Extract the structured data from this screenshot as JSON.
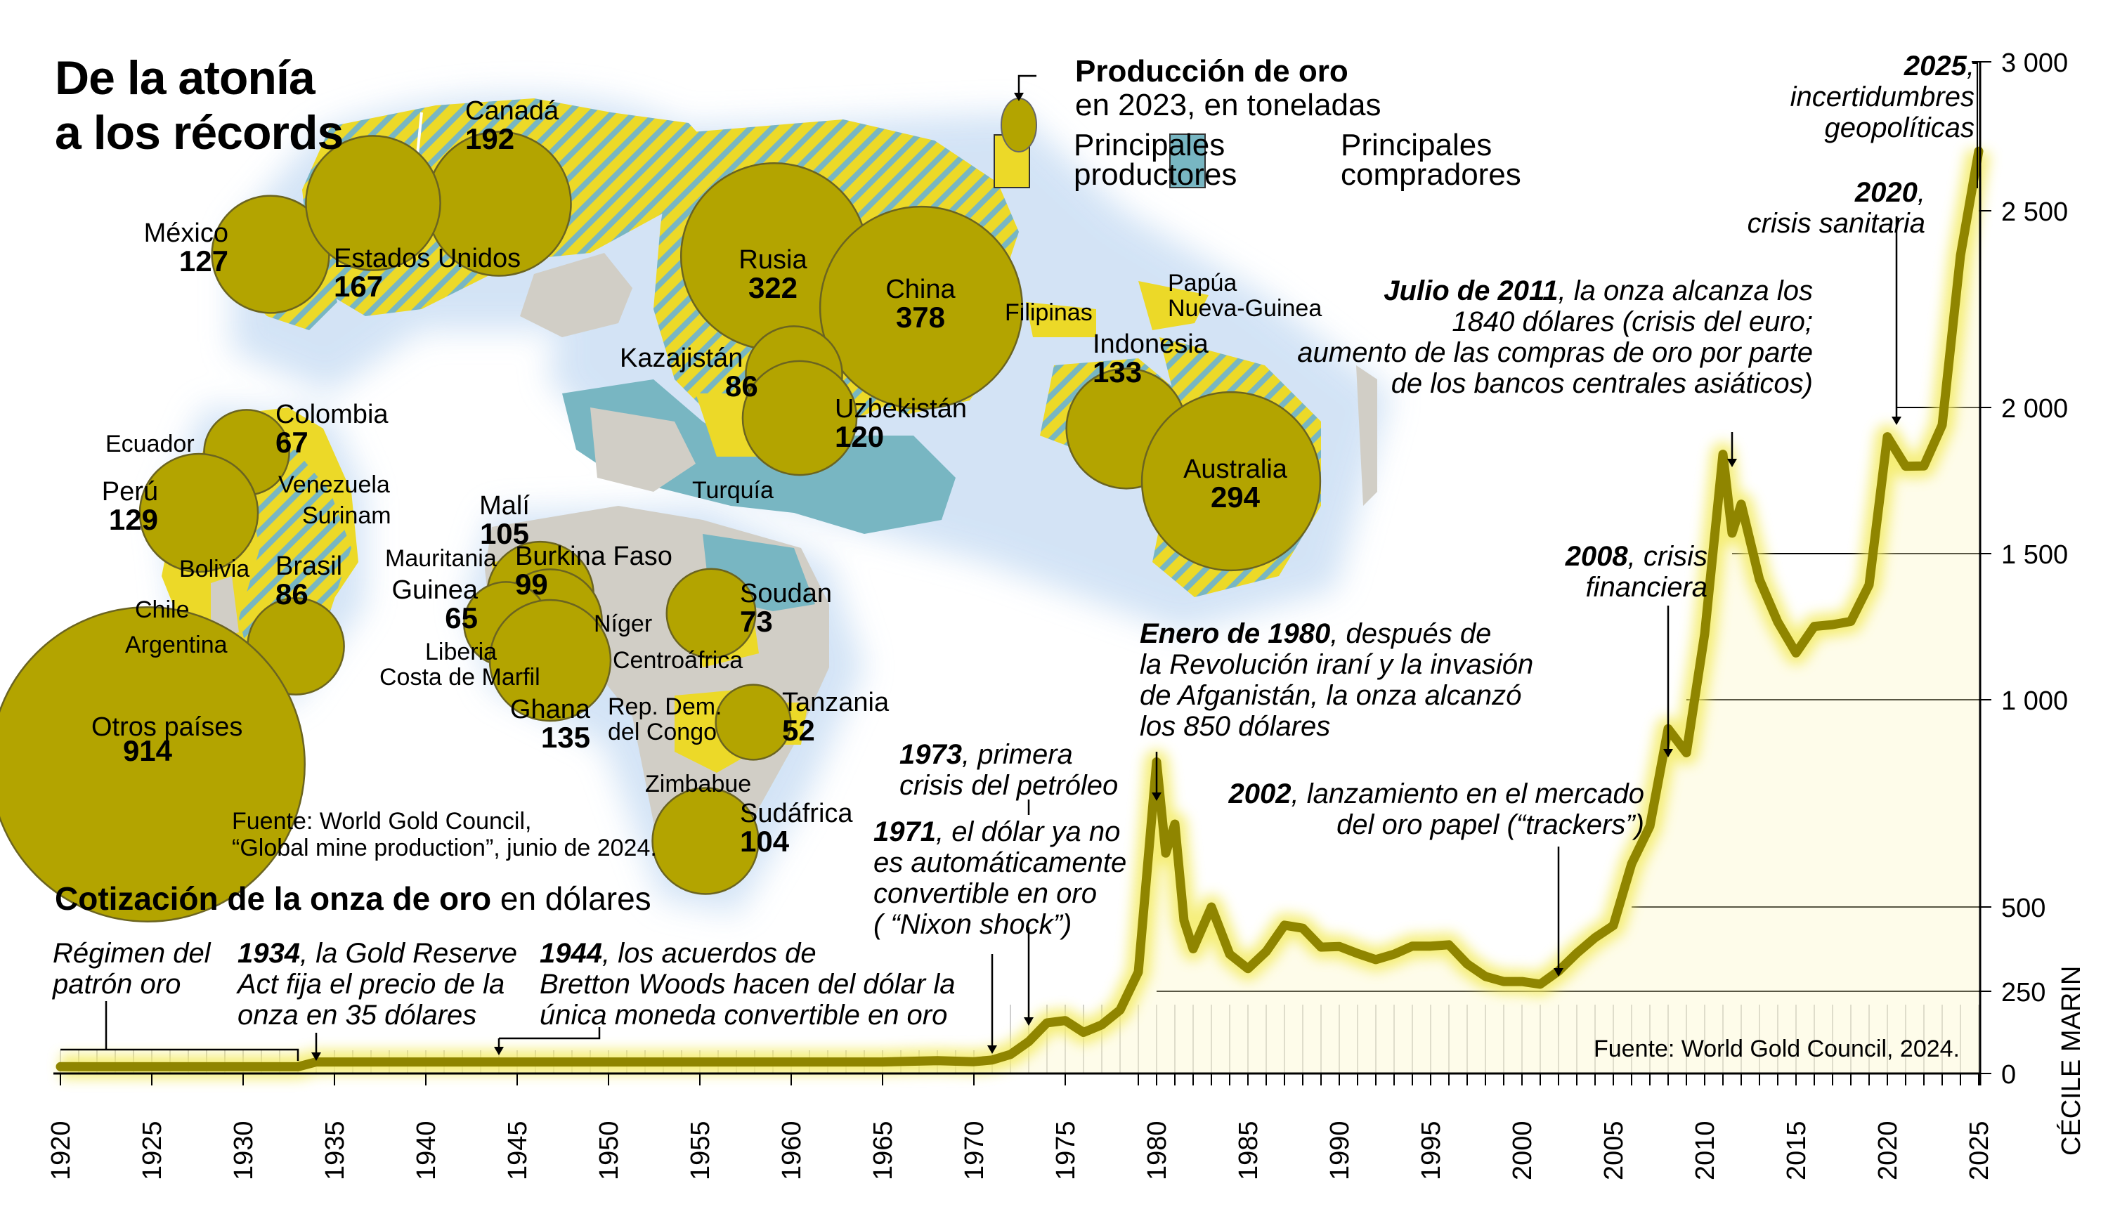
{
  "header": {
    "title_line1": "De la atonía",
    "title_line2": "a los récords"
  },
  "legend": {
    "title_bold": "Producción de oro",
    "title_rest": "en 2023, en toneladas",
    "producers_line1": "Principales",
    "producers_line2": "productores",
    "buyers_line1": "Principales",
    "buyers_line2": "compradores",
    "colors": {
      "producer": "#ecd928",
      "buyer": "#78b6c2",
      "bubble": "#b3a400",
      "land": "#d1cec6",
      "glow": "#cfe1f5"
    }
  },
  "map": {
    "production": [
      {
        "country": "Canadá",
        "tonnes": 192
      },
      {
        "country": "México",
        "tonnes": 127
      },
      {
        "country": "Estados Unidos",
        "tonnes": 167
      },
      {
        "country": "Rusia",
        "tonnes": 322
      },
      {
        "country": "China",
        "tonnes": 378
      },
      {
        "country": "Kazajistán",
        "tonnes": 86
      },
      {
        "country": "Uzbekistán",
        "tonnes": 120
      },
      {
        "country": "Indonesia",
        "tonnes": 133
      },
      {
        "country": "Australia",
        "tonnes": 294
      },
      {
        "country": "Colombia",
        "tonnes": 67
      },
      {
        "country": "Perú",
        "tonnes": 129
      },
      {
        "country": "Brasil",
        "tonnes": 86
      },
      {
        "country": "Malí",
        "tonnes": 105
      },
      {
        "country": "Burkina Faso",
        "tonnes": 99
      },
      {
        "country": "Guinea",
        "tonnes": 65
      },
      {
        "country": "Ghana",
        "tonnes": 135
      },
      {
        "country": "Soudan",
        "tonnes": 73
      },
      {
        "country": "Tanzania",
        "tonnes": 52
      },
      {
        "country": "Sudáfrica",
        "tonnes": 104
      },
      {
        "country": "Otros países",
        "tonnes": 914
      }
    ],
    "other_labels": [
      "Filipinas",
      "Papúa",
      "Nueva-Guinea",
      "Turquía",
      "Ecuador",
      "Venezuela",
      "Surinam",
      "Bolivia",
      "Chile",
      "Argentina",
      "Mauritania",
      "Níger",
      "Liberia",
      "Costa de Marfil",
      "Centroáfrica",
      "Rep. Dem.",
      "del Congo",
      "Zimbabue"
    ],
    "source_line1": "Fuente: World Gold Council,",
    "source_line2": "“Global mine production”, junio de 2024."
  },
  "chart_data": {
    "type": "line",
    "title": "Cotización de la onza de oro",
    "title_suffix": "en dólares",
    "xlabel": "",
    "ylabel": "",
    "x_ticks": [
      1920,
      1925,
      1930,
      1935,
      1940,
      1945,
      1950,
      1955,
      1960,
      1965,
      1970,
      1975,
      1980,
      1985,
      1990,
      1995,
      2000,
      2005,
      2010,
      2015,
      2020,
      2025
    ],
    "y_ticks": [
      0,
      250,
      500,
      1000,
      1500,
      2000,
      2500,
      3000
    ],
    "y_tick_labels": [
      "0",
      "250",
      "500",
      "1 000",
      "1 500",
      "2 000",
      "2 500",
      "3 000"
    ],
    "xlim": [
      1920,
      2025
    ],
    "ylim": [
      0,
      3000
    ],
    "series": [
      {
        "name": "Onza de oro (USD)",
        "color": "#8f8500",
        "points": [
          [
            1920,
            20.7
          ],
          [
            1925,
            20.6
          ],
          [
            1930,
            20.6
          ],
          [
            1933,
            20.6
          ],
          [
            1934,
            35
          ],
          [
            1935,
            35
          ],
          [
            1940,
            35
          ],
          [
            1945,
            35
          ],
          [
            1950,
            35
          ],
          [
            1955,
            35
          ],
          [
            1960,
            35
          ],
          [
            1965,
            35
          ],
          [
            1968,
            39
          ],
          [
            1970,
            36
          ],
          [
            1971,
            41
          ],
          [
            1972,
            58
          ],
          [
            1973,
            97
          ],
          [
            1974,
            154
          ],
          [
            1975,
            161
          ],
          [
            1976,
            125
          ],
          [
            1977,
            148
          ],
          [
            1978,
            193
          ],
          [
            1979,
            307
          ],
          [
            1980,
            850
          ],
          [
            1980.5,
            630
          ],
          [
            1981,
            700
          ],
          [
            1981.5,
            460
          ],
          [
            1982,
            376
          ],
          [
            1983,
            500
          ],
          [
            1984,
            360
          ],
          [
            1985,
            317
          ],
          [
            1986,
            368
          ],
          [
            1987,
            446
          ],
          [
            1988,
            437
          ],
          [
            1989,
            381
          ],
          [
            1990,
            383
          ],
          [
            1991,
            362
          ],
          [
            1992,
            344
          ],
          [
            1993,
            360
          ],
          [
            1994,
            384
          ],
          [
            1995,
            384
          ],
          [
            1996,
            388
          ],
          [
            1997,
            331
          ],
          [
            1998,
            294
          ],
          [
            1999,
            279
          ],
          [
            2000,
            279
          ],
          [
            2001,
            271
          ],
          [
            2002,
            310
          ],
          [
            2003,
            363
          ],
          [
            2004,
            409
          ],
          [
            2005,
            445
          ],
          [
            2006,
            604
          ],
          [
            2007,
            695
          ],
          [
            2008,
            930
          ],
          [
            2009,
            872
          ],
          [
            2010,
            1225
          ],
          [
            2011,
            1840
          ],
          [
            2011.5,
            1570
          ],
          [
            2012,
            1669
          ],
          [
            2013,
            1411
          ],
          [
            2014,
            1266
          ],
          [
            2015,
            1160
          ],
          [
            2016,
            1251
          ],
          [
            2017,
            1257
          ],
          [
            2018,
            1268
          ],
          [
            2019,
            1393
          ],
          [
            2020,
            1900
          ],
          [
            2021,
            1799
          ],
          [
            2022,
            1800
          ],
          [
            2023,
            1940
          ],
          [
            2024,
            2386
          ],
          [
            2025,
            2700
          ]
        ]
      }
    ],
    "annotations": [
      {
        "bold": "",
        "text": "Régimen del patrón oro"
      },
      {
        "bold": "1934",
        "text": ", la Gold Reserve Act fija el precio de la onza en 35  dólares"
      },
      {
        "bold": "1944",
        "text": ", los acuerdos de Bretton Woods hacen del dólar la única moneda convertible en oro"
      },
      {
        "bold": "1971",
        "text": ", el dólar ya no es automáticamente convertible en oro ( “Nixon shock”)"
      },
      {
        "bold": "1973",
        "text": ", primera crisis del petróleo"
      },
      {
        "bold": "Enero de 1980",
        "text": ", después de la Revolución iraní y la invasión de Afganistán, la onza alcanzó los 850 dólares"
      },
      {
        "bold": "2002",
        "text": ", lanzamiento en el mercado del oro papel (“trackers”)"
      },
      {
        "bold": "2008",
        "text": ", crisis financiera"
      },
      {
        "bold": "Julio de 2011",
        "text": ", la onza alcanza los 1840 dólares (crisis del euro; aumento de las compras de oro por parte de los bancos centrales asiáticos)"
      },
      {
        "bold": "2020",
        "text": ", crisis sanitaria"
      },
      {
        "bold": "2025",
        "text": ", incertidumbres geopolíticas"
      }
    ],
    "source": "Fuente: World Gold Council, 2024.",
    "credit": "CÉCILE MARIN"
  },
  "notes": {
    "n1_l1": "Régimen del",
    "n1_l2": "patrón oro",
    "n2_b": "1934",
    "n2_l1": ", la Gold Reserve",
    "n2_l2": "Act fija el precio de la",
    "n2_l3": "onza en 35  dólares",
    "n3_b": "1944",
    "n3_l1": ", los acuerdos de",
    "n3_l2": "Bretton Woods hacen del dólar la",
    "n3_l3": "única moneda convertible en oro",
    "n4_b": "1971",
    "n4_l1": ", el dólar ya no",
    "n4_l2": "es automáticamente",
    "n4_l3": "convertible en oro",
    "n4_l4": "( “Nixon shock”)",
    "n5_b": "1973",
    "n5_l1": ", primera",
    "n5_l2": "crisis del petróleo",
    "n6_b": "Enero de 1980",
    "n6_l1": ", después de",
    "n6_l2": "la Revolución iraní y la invasión",
    "n6_l3": "de Afganistán, la onza alcanzó",
    "n6_l4": "los 850 dólares",
    "n7_b": "2002",
    "n7_l1": ", lanzamiento en el mercado",
    "n7_l2": "del oro papel (“trackers”)",
    "n8_b": "2008",
    "n8_l1": ", crisis",
    "n8_l2": "financiera",
    "n9_b": "Julio de 2011",
    "n9_l1": ", la onza alcanza los",
    "n9_l2": "1840 dólares (crisis del euro;",
    "n9_l3": "aumento de las compras de oro por parte",
    "n9_l4": "de los bancos centrales asiáticos)",
    "n10_b": "2020",
    "n10_l1": ",",
    "n10_l2": "crisis sanitaria",
    "n11_b": "2025",
    "n11_l1": ",",
    "n11_l2": "incertidumbres",
    "n11_l3": "geopolíticas"
  }
}
